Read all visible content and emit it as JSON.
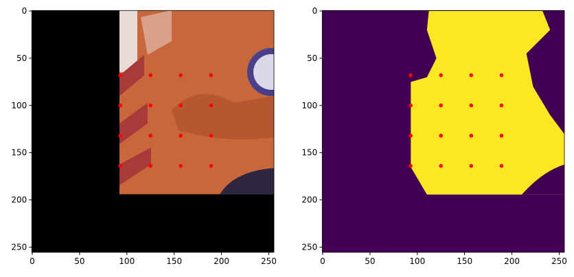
{
  "chart_data": [
    {
      "type": "scatter",
      "color": "#ff0000",
      "x": [
        93,
        125,
        157,
        189,
        93,
        125,
        157,
        189,
        93,
        125,
        157,
        189,
        93,
        125,
        157,
        189
      ],
      "y": [
        68,
        68,
        68,
        68,
        100,
        100,
        100,
        100,
        132,
        132,
        132,
        132,
        164,
        164,
        164,
        164
      ],
      "xlim": [
        -0.5,
        255.5
      ],
      "ylim": [
        255.5,
        -0.5
      ],
      "xticks": [
        0,
        50,
        100,
        150,
        200,
        250
      ],
      "yticks": [
        0,
        50,
        100,
        150,
        200,
        250
      ]
    },
    {
      "type": "scatter",
      "color": "#ff0000",
      "x": [
        93,
        125,
        157,
        189,
        93,
        125,
        157,
        189,
        93,
        125,
        157,
        189,
        93,
        125,
        157,
        189
      ],
      "y": [
        68,
        68,
        68,
        68,
        100,
        100,
        100,
        100,
        132,
        132,
        132,
        132,
        164,
        164,
        164,
        164
      ],
      "xlim": [
        -0.5,
        255.5
      ],
      "ylim": [
        255.5,
        -0.5
      ],
      "xticks": [
        0,
        50,
        100,
        150,
        200,
        250
      ],
      "yticks": [
        0,
        50,
        100,
        150,
        200,
        250
      ]
    }
  ]
}
